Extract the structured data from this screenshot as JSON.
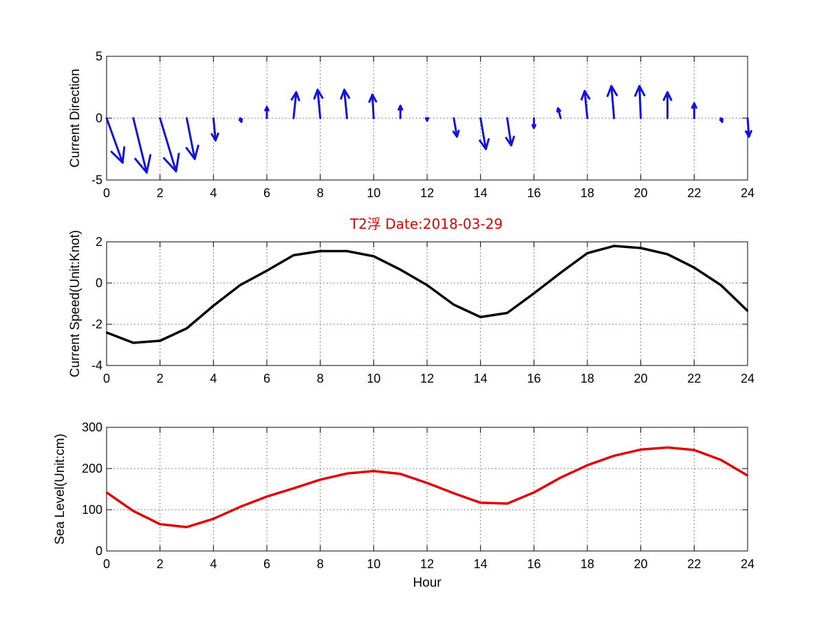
{
  "figure": {
    "title": "T2浮    Date:2018-03-29",
    "title_color": "#e00000"
  },
  "chart_data": [
    {
      "type": "quiver",
      "title": "",
      "xlabel": "",
      "ylabel": "Current Direction",
      "xlim": [
        0,
        24
      ],
      "ylim": [
        -5,
        5
      ],
      "xticks": [
        0,
        2,
        4,
        6,
        8,
        10,
        12,
        14,
        16,
        18,
        20,
        22,
        24
      ],
      "yticks": [
        -5,
        0,
        5
      ],
      "grid": true,
      "color": "#1010e0",
      "x": [
        0,
        1,
        2,
        3,
        4,
        5,
        6,
        7,
        8,
        9,
        10,
        11,
        12,
        13,
        14,
        15,
        16,
        17,
        18,
        19,
        20,
        21,
        22,
        23,
        24
      ],
      "u": [
        0.6,
        0.5,
        0.6,
        0.3,
        0.08,
        0.05,
        0.0,
        0.1,
        -0.1,
        -0.1,
        -0.05,
        0.0,
        0.0,
        0.12,
        0.2,
        0.15,
        0.0,
        -0.1,
        -0.1,
        -0.1,
        -0.05,
        0.0,
        0.0,
        0.05,
        0.05
      ],
      "v": [
        -3.6,
        -4.4,
        -4.3,
        -3.3,
        -1.8,
        -0.3,
        0.9,
        2.1,
        2.3,
        2.3,
        1.9,
        1.0,
        -0.2,
        -1.5,
        -2.5,
        -2.2,
        -0.8,
        0.8,
        2.2,
        2.6,
        2.6,
        2.1,
        1.2,
        -0.3,
        -1.5
      ]
    },
    {
      "type": "line",
      "title": "",
      "xlabel": "",
      "ylabel": "Current Speed(Unit:Knot)",
      "xlim": [
        0,
        24
      ],
      "ylim": [
        -4,
        2
      ],
      "xticks": [
        0,
        2,
        4,
        6,
        8,
        10,
        12,
        14,
        16,
        18,
        20,
        22,
        24
      ],
      "yticks": [
        -4,
        -2,
        0,
        2
      ],
      "grid": true,
      "series": [
        {
          "color": "#000000",
          "x": [
            0,
            1,
            2,
            3,
            4,
            5,
            6,
            7,
            8,
            9,
            10,
            11,
            12,
            13,
            14,
            15,
            16,
            17,
            18,
            19,
            20,
            21,
            22,
            23,
            24
          ],
          "values": [
            -2.4,
            -2.9,
            -2.8,
            -2.2,
            -1.1,
            -0.1,
            0.6,
            1.35,
            1.55,
            1.55,
            1.3,
            0.65,
            -0.1,
            -1.05,
            -1.65,
            -1.45,
            -0.5,
            0.5,
            1.45,
            1.8,
            1.7,
            1.4,
            0.75,
            -0.1,
            -1.35
          ]
        }
      ]
    },
    {
      "type": "line",
      "title": "",
      "xlabel": "Hour",
      "ylabel": "Sea Level(Unit:cm)",
      "xlim": [
        0,
        24
      ],
      "ylim": [
        0,
        300
      ],
      "xticks": [
        0,
        2,
        4,
        6,
        8,
        10,
        12,
        14,
        16,
        18,
        20,
        22,
        24
      ],
      "yticks": [
        0,
        100,
        200,
        300
      ],
      "grid": true,
      "series": [
        {
          "color": "#e00000",
          "x": [
            0,
            1,
            2,
            3,
            4,
            5,
            6,
            7,
            8,
            9,
            10,
            11,
            12,
            13,
            14,
            15,
            16,
            17,
            18,
            19,
            20,
            21,
            22,
            23,
            24
          ],
          "values": [
            142,
            97,
            65,
            58,
            78,
            107,
            132,
            152,
            173,
            188,
            194,
            187,
            165,
            140,
            117,
            115,
            142,
            178,
            208,
            231,
            246,
            251,
            245,
            221,
            183
          ]
        }
      ]
    }
  ]
}
